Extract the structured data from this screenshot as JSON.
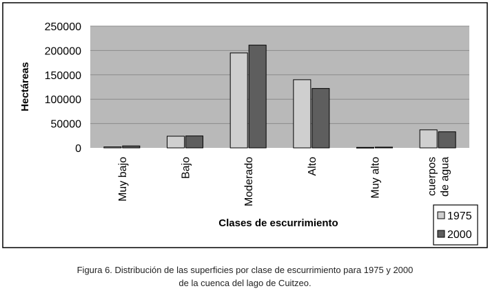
{
  "chart_data": {
    "type": "bar",
    "title": "",
    "xlabel": "Clases de escurrimiento",
    "ylabel": "Hectáreas",
    "ylim": [
      0,
      250000
    ],
    "yticks": [
      0,
      50000,
      100000,
      150000,
      200000,
      250000
    ],
    "ytick_labels": [
      "0",
      "50000",
      "100000",
      "150000",
      "200000",
      "250000"
    ],
    "categories": [
      [
        "Muy bajo"
      ],
      [
        "Bajo"
      ],
      [
        "Moderado"
      ],
      [
        "Alto"
      ],
      [
        "Muy alto"
      ],
      [
        "cuerpos",
        "de agua"
      ]
    ],
    "series": [
      {
        "name": "1975",
        "color": "#cfcfcf",
        "values": [
          2000,
          24000,
          195000,
          140000,
          1000,
          37000
        ]
      },
      {
        "name": "2000",
        "color": "#5e5e5e",
        "values": [
          4000,
          24500,
          211000,
          122000,
          1500,
          33000
        ]
      }
    ],
    "grid": true,
    "legend_position": "bottom-right",
    "plot_background": "#b9b9b9"
  },
  "caption": {
    "line1": "Figura 6. Distribución de las superficies por clase de escurrimiento para 1975 y 2000",
    "line2": "de la cuenca del lago de Cuitzeo."
  }
}
